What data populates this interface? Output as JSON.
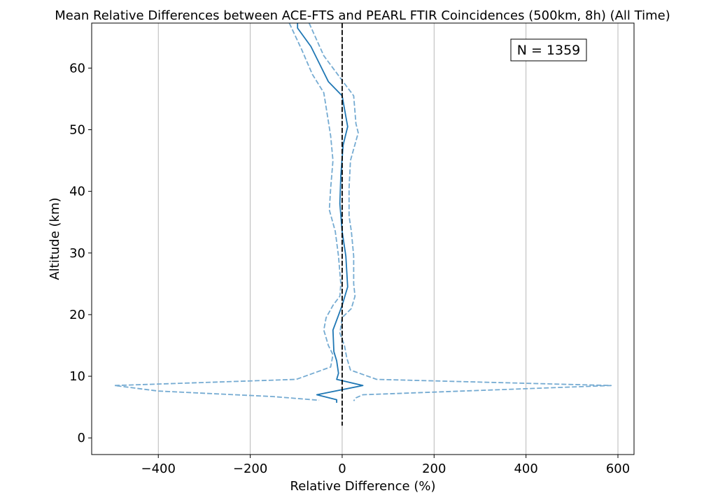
{
  "chart_data": {
    "type": "line",
    "title": "Mean Relative Differences between ACE-FTS and PEARL FTIR Coincidences (500km, 8h) (All Time)",
    "xlabel": "Relative Difference (%)",
    "ylabel": "Altitude (km)",
    "xlim": [
      -545,
      635
    ],
    "ylim": [
      -2.7,
      67.3
    ],
    "xticks": [
      -400,
      -200,
      0,
      200,
      400,
      600
    ],
    "xtick_labels": [
      "−400",
      "−200",
      "0",
      "200",
      "400",
      "600"
    ],
    "yticks": [
      0,
      10,
      20,
      30,
      40,
      50,
      60
    ],
    "ytick_labels": [
      "0",
      "10",
      "20",
      "30",
      "40",
      "50",
      "60"
    ],
    "grid": "x-only",
    "annotation": "N = 1359",
    "zero_line": {
      "x": 0,
      "y_range": [
        2,
        67.3
      ],
      "style": "dashed",
      "color": "#000000"
    },
    "colors": {
      "mean": "#1f77b4",
      "bounds": "#75abd2"
    },
    "series": [
      {
        "role": "mean",
        "style": "solid",
        "points": [
          [
            -97,
            67.3
          ],
          [
            -97,
            66.5
          ],
          [
            -68,
            63.5
          ],
          [
            -48,
            60.5
          ],
          [
            -30,
            57.8
          ],
          [
            0,
            55.5
          ],
          [
            12,
            50.5
          ],
          [
            2,
            47.5
          ],
          [
            -3,
            42.5
          ],
          [
            -5,
            38
          ],
          [
            0,
            33.5
          ],
          [
            8,
            29.5
          ],
          [
            12,
            24.5
          ],
          [
            0,
            21.5
          ],
          [
            -10,
            19.5
          ],
          [
            -20,
            17.5
          ],
          [
            -18,
            14
          ],
          [
            -12,
            12.5
          ],
          [
            -8,
            10.5
          ],
          [
            -12,
            9.5
          ],
          [
            45,
            8.5
          ],
          [
            -55,
            7
          ],
          [
            -12,
            6.2
          ],
          [
            -12,
            5.7
          ]
        ]
      },
      {
        "role": "upper-bound",
        "style": "dashed",
        "points": [
          [
            -72,
            67.3
          ],
          [
            -40,
            62
          ],
          [
            0,
            58
          ],
          [
            25,
            55.5
          ],
          [
            30,
            51
          ],
          [
            35,
            49.5
          ],
          [
            18,
            45
          ],
          [
            15,
            40.5
          ],
          [
            15,
            36
          ],
          [
            20,
            33.5
          ],
          [
            25,
            29.5
          ],
          [
            25,
            25
          ],
          [
            28,
            23
          ],
          [
            20,
            21
          ],
          [
            0,
            19.5
          ],
          [
            -5,
            17
          ],
          [
            5,
            15
          ],
          [
            10,
            13
          ],
          [
            18,
            11
          ],
          [
            75,
            9.5
          ],
          [
            585,
            8.5
          ],
          [
            45,
            7
          ],
          [
            30,
            6.5
          ],
          [
            25,
            6
          ]
        ]
      },
      {
        "role": "lower-bound",
        "style": "dashed",
        "points": [
          [
            -115,
            67.3
          ],
          [
            -88,
            63
          ],
          [
            -65,
            59
          ],
          [
            -40,
            56
          ],
          [
            -25,
            49
          ],
          [
            -20,
            45
          ],
          [
            -25,
            40.5
          ],
          [
            -28,
            37
          ],
          [
            -15,
            33.5
          ],
          [
            -8,
            29.5
          ],
          [
            -3,
            25
          ],
          [
            -5,
            23
          ],
          [
            -20,
            21.5
          ],
          [
            -35,
            19.5
          ],
          [
            -40,
            17.5
          ],
          [
            -30,
            15
          ],
          [
            -20,
            13.5
          ],
          [
            -25,
            11.5
          ],
          [
            -100,
            9.5
          ],
          [
            -495,
            8.5
          ],
          [
            -400,
            7.6
          ],
          [
            -150,
            6.7
          ],
          [
            -50,
            6.1
          ]
        ]
      }
    ]
  }
}
